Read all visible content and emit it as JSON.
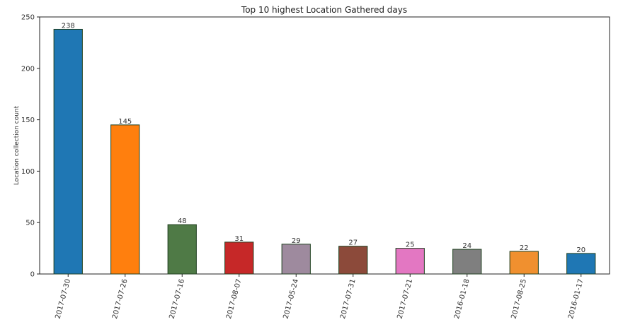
{
  "chart_data": {
    "type": "bar",
    "title": "Top 10 highest Location Gathered days",
    "xlabel": "",
    "ylabel": "Location collection count",
    "categories": [
      "2017-07-30",
      "2017-07-26",
      "2017-07-16",
      "2017-08-07",
      "2017-05-24",
      "2017-07-31",
      "2017-07-21",
      "2016-01-18",
      "2017-08-25",
      "2016-01-17"
    ],
    "values": [
      238,
      145,
      48,
      31,
      29,
      27,
      25,
      24,
      22,
      20
    ],
    "data_labels": [
      "238",
      "145",
      "48",
      "31",
      "29",
      "27",
      "25",
      "24",
      "22",
      "20"
    ],
    "colors": [
      "#1f77b4",
      "#ff7f0e",
      "#4f7a46",
      "#c62828",
      "#9e8a9e",
      "#8c4a3a",
      "#e377c2",
      "#7f7f7f",
      "#f0902f",
      "#1f77b4"
    ],
    "ylim": [
      0,
      250
    ],
    "yticks": [
      0,
      50,
      100,
      150,
      200,
      250
    ],
    "grid": false,
    "legend": "none"
  }
}
